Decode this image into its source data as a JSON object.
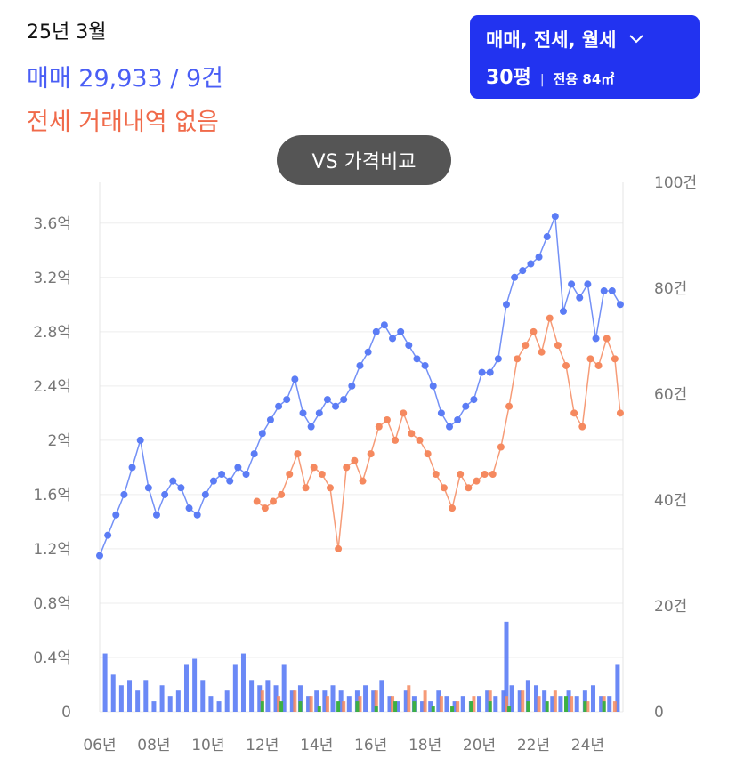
{
  "header": {
    "date": "25년 3월",
    "sale_summary": "매매 29,933 / 9건",
    "jeonse_summary": "전세 거래내역 없음"
  },
  "filter": {
    "deal_types": "매매, 전세, 월세",
    "size": "30평",
    "area": "전용 84㎡"
  },
  "compare_button": "VS 가격비교",
  "colors": {
    "sale": "#5b7cf5",
    "jeonse": "#f5895f",
    "monthly": "#3cb043",
    "button": "#2233f0"
  },
  "chart_data": {
    "type": "line",
    "x_range": [
      2006,
      2025.3
    ],
    "y_left": {
      "ticks": [
        0,
        0.4,
        0.8,
        1.2,
        1.6,
        2,
        2.4,
        2.8,
        3.2,
        3.6
      ],
      "tick_labels": [
        "0",
        "0.4억",
        "0.8억",
        "1.2억",
        "1.6억",
        "2억",
        "2.4억",
        "2.8억",
        "3.2억",
        "3.6억"
      ],
      "range": [
        0,
        3.9
      ]
    },
    "y_right": {
      "ticks": [
        0,
        20,
        40,
        60,
        80,
        100
      ],
      "tick_labels": [
        "0",
        "20건",
        "40건",
        "60건",
        "80건",
        "100건"
      ],
      "range": [
        0,
        100
      ]
    },
    "x_ticks": [
      {
        "x": 2006,
        "label": "06년"
      },
      {
        "x": 2008,
        "label": "08년"
      },
      {
        "x": 2010,
        "label": "10년"
      },
      {
        "x": 2012,
        "label": "12년"
      },
      {
        "x": 2014,
        "label": "14년"
      },
      {
        "x": 2016,
        "label": "16년"
      },
      {
        "x": 2018,
        "label": "18년"
      },
      {
        "x": 2020,
        "label": "20년"
      },
      {
        "x": 2022,
        "label": "22년"
      },
      {
        "x": 2024,
        "label": "24년"
      }
    ],
    "grid": true,
    "series": [
      {
        "kind": "sale_price",
        "x": [
          2006.0,
          2006.3,
          2006.6,
          2006.9,
          2007.2,
          2007.5,
          2007.8,
          2008.1,
          2008.4,
          2008.7,
          2009.0,
          2009.3,
          2009.6,
          2009.9,
          2010.2,
          2010.5,
          2010.8,
          2011.1,
          2011.4,
          2011.7,
          2012.0,
          2012.3,
          2012.6,
          2012.9,
          2013.2,
          2013.5,
          2013.8,
          2014.1,
          2014.4,
          2014.7,
          2015.0,
          2015.3,
          2015.6,
          2015.9,
          2016.2,
          2016.5,
          2016.8,
          2017.1,
          2017.4,
          2017.7,
          2018.0,
          2018.3,
          2018.6,
          2018.9,
          2019.2,
          2019.5,
          2019.8,
          2020.1,
          2020.4,
          2020.7,
          2021.0,
          2021.3,
          2021.6,
          2021.9,
          2022.2,
          2022.5,
          2022.8,
          2023.1,
          2023.4,
          2023.7,
          2024.0,
          2024.3,
          2024.6,
          2024.9,
          2025.2
        ],
        "y": [
          1.15,
          1.3,
          1.45,
          1.6,
          1.8,
          2.0,
          1.65,
          1.45,
          1.6,
          1.7,
          1.65,
          1.5,
          1.45,
          1.6,
          1.7,
          1.75,
          1.7,
          1.8,
          1.75,
          1.9,
          2.05,
          2.15,
          2.25,
          2.3,
          2.45,
          2.2,
          2.1,
          2.2,
          2.3,
          2.25,
          2.3,
          2.4,
          2.55,
          2.65,
          2.8,
          2.85,
          2.75,
          2.8,
          2.7,
          2.6,
          2.55,
          2.4,
          2.2,
          2.1,
          2.15,
          2.25,
          2.3,
          2.5,
          2.5,
          2.6,
          3.0,
          3.2,
          3.25,
          3.3,
          3.35,
          3.5,
          3.65,
          2.95,
          3.15,
          3.05,
          3.15,
          2.75,
          3.1,
          3.1,
          3.0
        ]
      },
      {
        "kind": "jeonse_price",
        "x": [
          2011.8,
          2012.1,
          2012.4,
          2012.7,
          2013.0,
          2013.3,
          2013.6,
          2013.9,
          2014.2,
          2014.5,
          2014.8,
          2015.1,
          2015.4,
          2015.7,
          2016.0,
          2016.3,
          2016.6,
          2016.9,
          2017.2,
          2017.5,
          2017.8,
          2018.1,
          2018.4,
          2018.7,
          2019.0,
          2019.3,
          2019.6,
          2019.9,
          2020.2,
          2020.5,
          2020.8,
          2021.1,
          2021.4,
          2021.7,
          2022.0,
          2022.3,
          2022.6,
          2022.9,
          2023.2,
          2023.5,
          2023.8,
          2024.1,
          2024.4,
          2024.7,
          2025.0,
          2025.2
        ],
        "y": [
          1.55,
          1.5,
          1.55,
          1.6,
          1.75,
          1.9,
          1.65,
          1.8,
          1.75,
          1.65,
          1.2,
          1.8,
          1.85,
          1.7,
          1.9,
          2.1,
          2.15,
          2.0,
          2.2,
          2.05,
          2.0,
          1.9,
          1.75,
          1.65,
          1.5,
          1.75,
          1.65,
          1.7,
          1.75,
          1.75,
          1.95,
          2.25,
          2.6,
          2.7,
          2.8,
          2.65,
          2.9,
          2.7,
          2.55,
          2.2,
          2.1,
          2.6,
          2.55,
          2.75,
          2.6,
          2.2
        ]
      }
    ],
    "volume": {
      "sale_x": [
        2006.2,
        2006.5,
        2006.8,
        2007.1,
        2007.4,
        2007.7,
        2008.0,
        2008.3,
        2008.6,
        2008.9,
        2009.2,
        2009.5,
        2009.8,
        2010.1,
        2010.4,
        2010.7,
        2011.0,
        2011.3,
        2011.6,
        2011.9,
        2012.2,
        2012.5,
        2012.8,
        2013.1,
        2013.4,
        2013.7,
        2014.0,
        2014.3,
        2014.6,
        2014.9,
        2015.2,
        2015.5,
        2015.8,
        2016.1,
        2016.4,
        2016.7,
        2017.0,
        2017.3,
        2017.6,
        2017.9,
        2018.2,
        2018.5,
        2018.8,
        2019.1,
        2019.4,
        2019.7,
        2020.0,
        2020.3,
        2020.6,
        2020.9,
        2021.0,
        2021.2,
        2021.5,
        2021.8,
        2022.1,
        2022.4,
        2022.7,
        2023.0,
        2023.3,
        2023.6,
        2023.9,
        2024.2,
        2024.5,
        2024.8,
        2025.1
      ],
      "sale_counts": [
        11,
        7,
        5,
        6,
        4,
        6,
        2,
        5,
        3,
        4,
        9,
        10,
        6,
        3,
        2,
        4,
        9,
        11,
        6,
        5,
        6,
        5,
        9,
        4,
        5,
        3,
        4,
        4,
        5,
        4,
        3,
        4,
        5,
        4,
        6,
        3,
        2,
        4,
        3,
        2,
        2,
        4,
        3,
        2,
        3,
        2,
        3,
        4,
        3,
        4,
        17,
        5,
        4,
        6,
        5,
        4,
        3,
        3,
        4,
        3,
        4,
        5,
        3,
        3,
        9
      ],
      "jeonse_x": [
        2012.0,
        2012.6,
        2013.2,
        2013.8,
        2014.4,
        2015.0,
        2015.6,
        2016.2,
        2016.8,
        2017.4,
        2018.0,
        2018.6,
        2019.2,
        2019.8,
        2020.4,
        2021.0,
        2021.6,
        2022.2,
        2022.8,
        2023.4,
        2024.0,
        2024.6,
        2025.0
      ],
      "jeonse_counts": [
        4,
        3,
        4,
        3,
        3,
        2,
        3,
        4,
        3,
        5,
        4,
        3,
        2,
        3,
        4,
        3,
        4,
        3,
        4,
        3,
        2,
        3,
        2
      ],
      "monthly_x": [
        2012.0,
        2012.7,
        2013.4,
        2014.1,
        2014.8,
        2015.5,
        2016.2,
        2016.9,
        2017.6,
        2018.3,
        2019.0,
        2019.7,
        2020.4,
        2021.1,
        2021.8,
        2022.5,
        2023.2,
        2023.9,
        2024.6
      ],
      "monthly_counts": [
        2,
        2,
        2,
        1,
        2,
        2,
        1,
        2,
        2,
        1,
        1,
        2,
        2,
        1,
        2,
        2,
        3,
        2,
        2
      ]
    }
  }
}
